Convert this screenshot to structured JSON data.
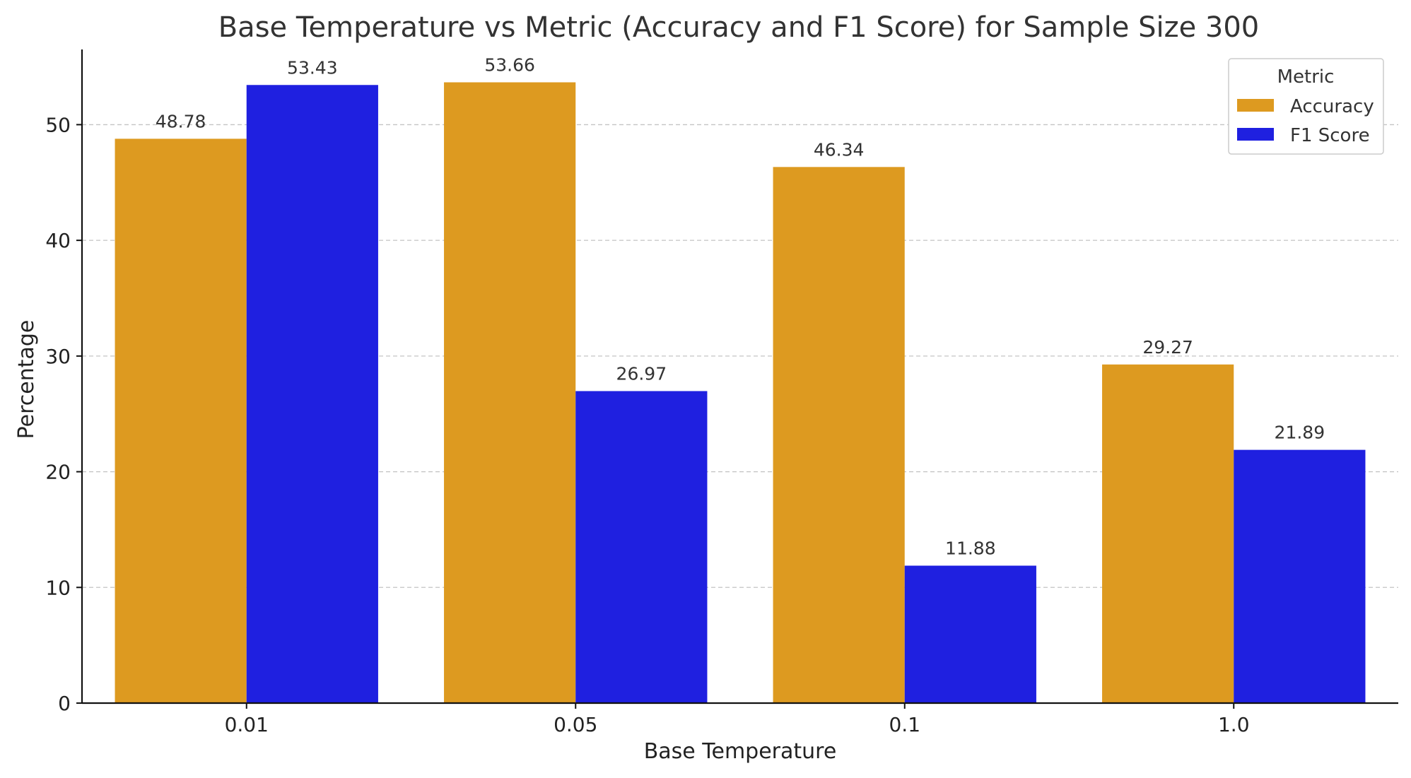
{
  "chart_data": {
    "type": "bar",
    "title": "Base Temperature vs Metric (Accuracy and F1 Score) for Sample Size 300",
    "xlabel": "Base Temperature",
    "ylabel": "Percentage",
    "categories": [
      "0.01",
      "0.05",
      "0.1",
      "1.0"
    ],
    "series": [
      {
        "name": "Accuracy",
        "color": "#dd9a20",
        "values": [
          48.78,
          53.66,
          46.34,
          29.27
        ],
        "labels": [
          "48.78",
          "53.66",
          "46.34",
          "29.27"
        ]
      },
      {
        "name": "F1 Score",
        "color": "#1f20e0",
        "values": [
          53.43,
          26.97,
          11.88,
          21.89
        ],
        "labels": [
          "53.43",
          "26.97",
          "11.88",
          "21.89"
        ]
      }
    ],
    "ylim": [
      0,
      56.5
    ],
    "yticks": [
      0,
      10,
      20,
      30,
      40,
      50
    ],
    "ytick_labels": [
      "0",
      "10",
      "20",
      "30",
      "40",
      "50"
    ],
    "grid": true,
    "legend": {
      "title": "Metric",
      "position": "top-right"
    }
  }
}
